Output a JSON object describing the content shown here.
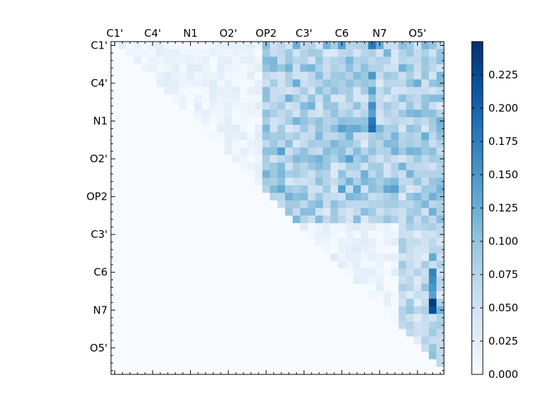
{
  "chart_data": {
    "type": "heatmap",
    "title": "",
    "triangle": "upper",
    "n": 44,
    "colormap": "Blues",
    "vmin": 0,
    "vmax": 0.25,
    "tick_labels": [
      "C1'",
      "C4'",
      "N1",
      "O2'",
      "OP2",
      "C3'",
      "C6",
      "N7",
      "O5'"
    ],
    "tick_indices": [
      0,
      5,
      10,
      15,
      20,
      25,
      30,
      35,
      40
    ],
    "colorbar": {
      "ticks": [
        0.0,
        0.025,
        0.05,
        0.075,
        0.1,
        0.125,
        0.15,
        0.175,
        0.2,
        0.225
      ],
      "tick_labels": [
        "0.000",
        "0.025",
        "0.050",
        "0.075",
        "0.100",
        "0.125",
        "0.150",
        "0.175",
        "0.200",
        "0.225"
      ]
    },
    "highlights": [
      {
        "row": 0,
        "col": 34,
        "value": 0.18
      },
      {
        "row": 0,
        "col": 30,
        "value": 0.14
      },
      {
        "row": 0,
        "col": 28,
        "value": 0.12
      },
      {
        "row": 0,
        "col": 35,
        "value": 0.13
      },
      {
        "row": 2,
        "col": 20,
        "value": 0.11
      },
      {
        "row": 4,
        "col": 34,
        "value": 0.15
      },
      {
        "row": 6,
        "col": 34,
        "value": 0.14
      },
      {
        "row": 8,
        "col": 34,
        "value": 0.16
      },
      {
        "row": 9,
        "col": 34,
        "value": 0.14
      },
      {
        "row": 10,
        "col": 34,
        "value": 0.18
      },
      {
        "row": 11,
        "col": 34,
        "value": 0.19
      },
      {
        "row": 11,
        "col": 30,
        "value": 0.14
      },
      {
        "row": 11,
        "col": 32,
        "value": 0.13
      },
      {
        "row": 14,
        "col": 22,
        "value": 0.14
      },
      {
        "row": 15,
        "col": 31,
        "value": 0.14
      },
      {
        "row": 17,
        "col": 20,
        "value": 0.12
      },
      {
        "row": 19,
        "col": 22,
        "value": 0.13
      },
      {
        "row": 19,
        "col": 30,
        "value": 0.14
      },
      {
        "row": 19,
        "col": 32,
        "value": 0.13
      },
      {
        "row": 19,
        "col": 36,
        "value": 0.13
      },
      {
        "row": 19,
        "col": 37,
        "value": 0.14
      },
      {
        "row": 20,
        "col": 23,
        "value": 0.12
      },
      {
        "row": 28,
        "col": 42,
        "value": 0.13
      },
      {
        "row": 30,
        "col": 42,
        "value": 0.17
      },
      {
        "row": 31,
        "col": 42,
        "value": 0.16
      },
      {
        "row": 32,
        "col": 42,
        "value": 0.15
      },
      {
        "row": 33,
        "col": 42,
        "value": 0.14
      },
      {
        "row": 34,
        "col": 42,
        "value": 0.24
      },
      {
        "row": 35,
        "col": 42,
        "value": 0.22
      },
      {
        "row": 35,
        "col": 43,
        "value": 0.12
      }
    ]
  }
}
